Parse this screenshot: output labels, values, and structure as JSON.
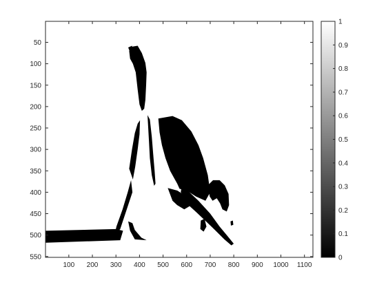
{
  "chart_data": {
    "type": "heatmap",
    "title": "",
    "xlabel": "",
    "ylabel": "",
    "xlim": [
      1,
      1136
    ],
    "ylim": [
      1,
      552
    ],
    "y_reversed": true,
    "x_ticks": [
      100,
      200,
      300,
      400,
      500,
      600,
      700,
      800,
      900,
      1000,
      1100
    ],
    "x_tick_labels": [
      "100",
      "200",
      "300",
      "400",
      "500",
      "600",
      "700",
      "800",
      "900",
      "1000",
      "1100"
    ],
    "y_ticks": [
      50,
      100,
      150,
      200,
      250,
      300,
      350,
      400,
      450,
      500,
      550
    ],
    "y_tick_labels": [
      "50",
      "100",
      "150",
      "200",
      "250",
      "300",
      "350",
      "400",
      "450",
      "500",
      "550"
    ],
    "colormap": "gray",
    "colorbar": {
      "range": [
        0,
        1
      ],
      "ticks": [
        0,
        0.1,
        0.2,
        0.3,
        0.4,
        0.5,
        0.6,
        0.7,
        0.8,
        0.9,
        1
      ],
      "tick_labels": [
        "0",
        "0.1",
        "0.2",
        "0.3",
        "0.4",
        "0.5",
        "0.6",
        "0.7",
        "0.8",
        "0.9",
        "1"
      ],
      "low_color": "#000000",
      "high_color": "#ffffff"
    },
    "image_description_values": "binary image: 0 = black, 1 = white",
    "regions": [
      {
        "name": "penguin-head-neck",
        "value": 0,
        "points": [
          [
            356,
            70
          ],
          [
            370,
            60
          ],
          [
            392,
            58
          ],
          [
            410,
            75
          ],
          [
            425,
            98
          ],
          [
            430,
            120
          ],
          [
            428,
            150
          ],
          [
            425,
            185
          ],
          [
            420,
            205
          ],
          [
            410,
            210
          ],
          [
            400,
            195
          ],
          [
            392,
            160
          ],
          [
            384,
            120
          ],
          [
            372,
            100
          ],
          [
            360,
            88
          ]
        ]
      },
      {
        "name": "penguin-beak",
        "value": 0,
        "points": [
          [
            352,
            62
          ],
          [
            368,
            58
          ],
          [
            372,
            70
          ],
          [
            362,
            76
          ]
        ]
      },
      {
        "name": "penguin-left-back",
        "value": 0,
        "points": [
          [
            392,
            240
          ],
          [
            402,
            232
          ],
          [
            400,
            265
          ],
          [
            392,
            300
          ],
          [
            382,
            340
          ],
          [
            372,
            370
          ],
          [
            356,
            345
          ],
          [
            368,
            300
          ],
          [
            380,
            262
          ]
        ]
      },
      {
        "name": "penguin-right-outline",
        "value": 0,
        "points": [
          [
            434,
            220
          ],
          [
            444,
            230
          ],
          [
            452,
            270
          ],
          [
            458,
            310
          ],
          [
            464,
            350
          ],
          [
            468,
            380
          ],
          [
            462,
            385
          ],
          [
            452,
            360
          ],
          [
            444,
            320
          ],
          [
            440,
            280
          ]
        ]
      },
      {
        "name": "flipper-shadow",
        "value": 0,
        "points": [
          [
            364,
            372
          ],
          [
            370,
            400
          ],
          [
            346,
            440
          ],
          [
            318,
            486
          ],
          [
            294,
            500
          ],
          [
            302,
            480
          ],
          [
            328,
            440
          ],
          [
            350,
            400
          ]
        ]
      },
      {
        "name": "foot-shadow",
        "value": 0,
        "points": [
          [
            352,
            468
          ],
          [
            370,
            472
          ],
          [
            380,
            488
          ],
          [
            408,
            506
          ],
          [
            430,
            512
          ],
          [
            380,
            510
          ],
          [
            360,
            490
          ]
        ]
      },
      {
        "name": "ground-band",
        "value": 0,
        "points": [
          [
            1,
            490
          ],
          [
            300,
            486
          ],
          [
            330,
            490
          ],
          [
            318,
            512
          ],
          [
            1,
            518
          ]
        ]
      },
      {
        "name": "rock-main",
        "value": 0,
        "points": [
          [
            480,
            228
          ],
          [
            540,
            222
          ],
          [
            580,
            232
          ],
          [
            620,
            258
          ],
          [
            650,
            290
          ],
          [
            670,
            320
          ],
          [
            690,
            360
          ],
          [
            700,
            400
          ],
          [
            680,
            420
          ],
          [
            640,
            410
          ],
          [
            600,
            396
          ],
          [
            570,
            392
          ],
          [
            560,
            380
          ],
          [
            530,
            350
          ],
          [
            510,
            320
          ],
          [
            495,
            290
          ],
          [
            485,
            260
          ]
        ]
      },
      {
        "name": "rock-lower",
        "value": 0,
        "points": [
          [
            520,
            390
          ],
          [
            560,
            396
          ],
          [
            600,
            410
          ],
          [
            620,
            430
          ],
          [
            590,
            440
          ],
          [
            560,
            430
          ],
          [
            540,
            420
          ]
        ]
      },
      {
        "name": "penguin2-head",
        "value": 0,
        "points": [
          [
            690,
            384
          ],
          [
            712,
            372
          ],
          [
            740,
            372
          ],
          [
            762,
            384
          ],
          [
            778,
            404
          ],
          [
            780,
            430
          ],
          [
            770,
            445
          ],
          [
            752,
            440
          ],
          [
            742,
            426
          ],
          [
            728,
            414
          ],
          [
            710,
            420
          ],
          [
            698,
            410
          ]
        ]
      },
      {
        "name": "penguin2-bill",
        "value": 0,
        "points": [
          [
            580,
            384
          ],
          [
            608,
            398
          ],
          [
            650,
            420
          ],
          [
            700,
            450
          ],
          [
            740,
            480
          ],
          [
            770,
            500
          ],
          [
            800,
            520
          ],
          [
            790,
            524
          ],
          [
            760,
            510
          ],
          [
            720,
            488
          ],
          [
            680,
            466
          ],
          [
            640,
            444
          ],
          [
            600,
            420
          ],
          [
            575,
            400
          ]
        ]
      },
      {
        "name": "penguin2-stripe",
        "value": 0,
        "points": [
          [
            600,
            410
          ],
          [
            640,
            430
          ],
          [
            700,
            466
          ],
          [
            760,
            500
          ],
          [
            770,
            508
          ],
          [
            740,
            498
          ],
          [
            690,
            472
          ],
          [
            640,
            446
          ],
          [
            600,
            426
          ]
        ]
      },
      {
        "name": "small-blob",
        "value": 0,
        "points": [
          [
            660,
            466
          ],
          [
            676,
            462
          ],
          [
            684,
            480
          ],
          [
            672,
            492
          ],
          [
            658,
            486
          ]
        ]
      },
      {
        "name": "right-dot",
        "value": 0,
        "points": [
          [
            786,
            468
          ],
          [
            796,
            466
          ],
          [
            798,
            476
          ],
          [
            788,
            478
          ]
        ]
      }
    ]
  }
}
